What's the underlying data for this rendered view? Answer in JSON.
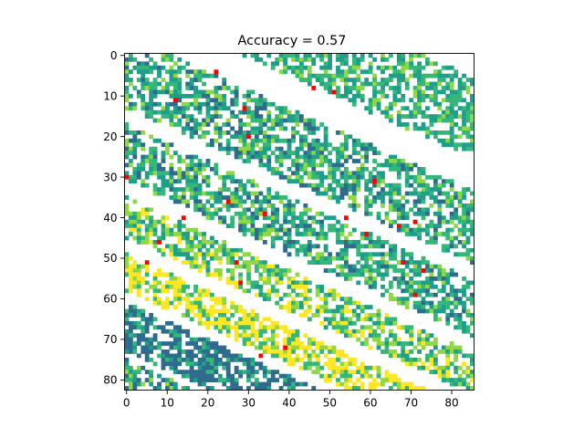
{
  "chart_data": {
    "type": "heatmap",
    "title": "Accuracy = 0.57",
    "xlabel": "",
    "ylabel": "",
    "n_cols": 86,
    "n_rows": 83,
    "xlim": [
      0,
      85
    ],
    "ylim": [
      82,
      0
    ],
    "x_ticks": [
      0,
      10,
      20,
      30,
      40,
      50,
      60,
      70,
      80
    ],
    "y_ticks": [
      0,
      10,
      20,
      30,
      40,
      50,
      60,
      70,
      80
    ],
    "grid": false,
    "legend": "none",
    "colors": {
      "dark_purple": "#3b2d7a",
      "dark_blue": "#2e6b8c",
      "teal": "#1f9e89",
      "green": "#35b779",
      "light_green": "#8fd744",
      "yellow": "#fde725",
      "red": "#ff0000",
      "empty": "#ffffff"
    },
    "diagonal_bands": [
      {
        "class": "dark_purple",
        "c_min": -30,
        "c_max": 6,
        "density": 0.75,
        "palette": [
          "dark_purple",
          "dark_purple",
          "light_green",
          "teal",
          "green",
          "yellow"
        ]
      },
      {
        "class": "teal_green",
        "c_min": 12,
        "c_max": 32,
        "density": 0.62,
        "palette": [
          "teal",
          "green",
          "teal",
          "green",
          "light_green"
        ]
      },
      {
        "class": "teal_green",
        "c_min": 40,
        "c_max": 58,
        "density": 0.62,
        "palette": [
          "teal",
          "green",
          "teal",
          "green",
          "light_green",
          "dark_blue"
        ]
      },
      {
        "class": "teal_green",
        "c_min": 62,
        "c_max": 76,
        "density": 0.62,
        "palette": [
          "teal",
          "green",
          "green",
          "light_green",
          "teal",
          "dark_blue"
        ]
      },
      {
        "class": "light_green_yellow",
        "c_min": 80,
        "c_max": 90,
        "density": 0.65,
        "palette": [
          "light_green",
          "green",
          "yellow",
          "light_green",
          "teal"
        ]
      },
      {
        "class": "yellow",
        "c_min": 94,
        "c_max": 103,
        "density": 0.7,
        "palette": [
          "yellow",
          "yellow",
          "light_green",
          "green",
          "yellow"
        ]
      },
      {
        "class": "dark_blue",
        "c_min": 106,
        "c_max": 118,
        "density": 0.72,
        "palette": [
          "dark_blue",
          "dark_blue",
          "dark_blue",
          "teal",
          "green"
        ]
      },
      {
        "class": "green_teal",
        "c_min": 120,
        "c_max": 170,
        "density": 0.62,
        "palette": [
          "green",
          "teal",
          "green",
          "teal",
          "dark_blue",
          "light_green"
        ]
      }
    ],
    "band_slope": 0.45,
    "red_points": [
      [
        0,
        30
      ],
      [
        5,
        51
      ],
      [
        8,
        46
      ],
      [
        12,
        11
      ],
      [
        14,
        40
      ],
      [
        22,
        4
      ],
      [
        25,
        36
      ],
      [
        27,
        51
      ],
      [
        28,
        56
      ],
      [
        29,
        13
      ],
      [
        30,
        20
      ],
      [
        34,
        39
      ],
      [
        39,
        72
      ],
      [
        46,
        8
      ],
      [
        51,
        9
      ],
      [
        54,
        40
      ],
      [
        59,
        44
      ],
      [
        61,
        31
      ],
      [
        67,
        42
      ],
      [
        68,
        51
      ],
      [
        71,
        41
      ],
      [
        71,
        59
      ],
      [
        73,
        53
      ],
      [
        33,
        74
      ]
    ]
  }
}
